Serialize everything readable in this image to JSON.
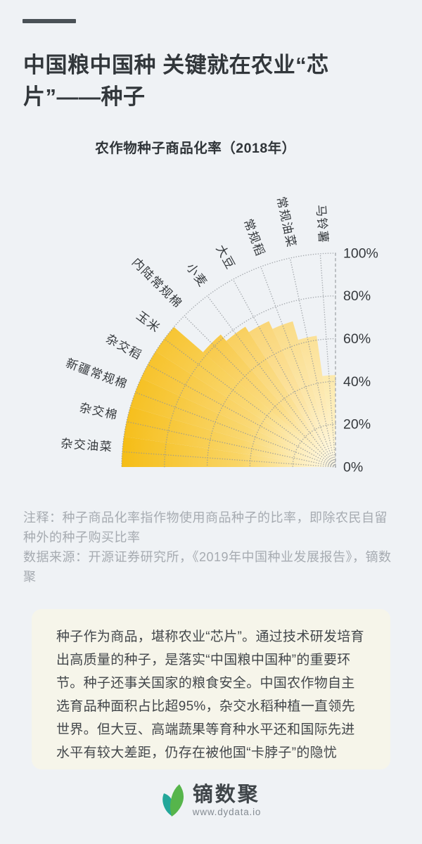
{
  "page": {
    "background": "#EFF2F5",
    "accent_bar_color": "#4A5156"
  },
  "header": {
    "title_line1": "中国粮中国种 关键就在农业“芯",
    "title_line2": "片”——种子"
  },
  "chart_data": {
    "type": "bar",
    "layout": "quarter_polar_rose",
    "title": "农作物种子商品化率（2018年）",
    "unit": "%",
    "categories": [
      "马铃薯",
      "常规油菜",
      "常规稻",
      "大豆",
      "小麦",
      "内陆常规棉",
      "玉米",
      "杂交稻",
      "新疆常规棉",
      "杂交棉",
      "杂交油菜"
    ],
    "values": [
      43,
      62,
      71,
      75,
      78,
      82,
      100,
      100,
      100,
      100,
      100
    ],
    "radial_ticks": [
      "0%",
      "20%",
      "40%",
      "60%",
      "80%",
      "100%"
    ],
    "rlim": [
      0,
      100
    ],
    "angle_span_deg": 90,
    "first_category_at": "vertical_axis",
    "grid": "dotted",
    "sector_rim_colors": [
      "#FCE9AC",
      "#FBE197",
      "#FADC88",
      "#FAD678",
      "#F9D05F",
      "#F8CA4A",
      "#F7C533",
      "#F7C32C",
      "#F6C124",
      "#F6BF1D",
      "#F5BD16"
    ],
    "sector_inner_color": "#FFFBEB",
    "grid_color": "#8F9499",
    "axis_color": "#A6AAAE",
    "label_color": "#35393D"
  },
  "notes": {
    "annotation": "注释：种子商品化率指作物使用商品种子的比率，即除农民自留种外的种子购买比率",
    "source": "数据来源：开源证券研究所，《2019年中国种业发展报告》，镝数聚"
  },
  "body_card": {
    "text": "种子作为商品，堪称农业“芯片”。通过技术研发培育出高质量的种子，是落实“中国粮中国种”的重要环节。种子还事关国家的粮食安全。中国农作物自主选育品种面积占比超95%，杂交水稻种植一直领先世界。但大豆、高端蔬果等育种水平还和国际先进水平有较大差距，仍存在被他国“卡脖子”的隐忧"
  },
  "footer": {
    "brand": "镝数聚",
    "website": "www.dydata.io",
    "leaf_colors": [
      "#23A79A",
      "#56B54B"
    ]
  }
}
